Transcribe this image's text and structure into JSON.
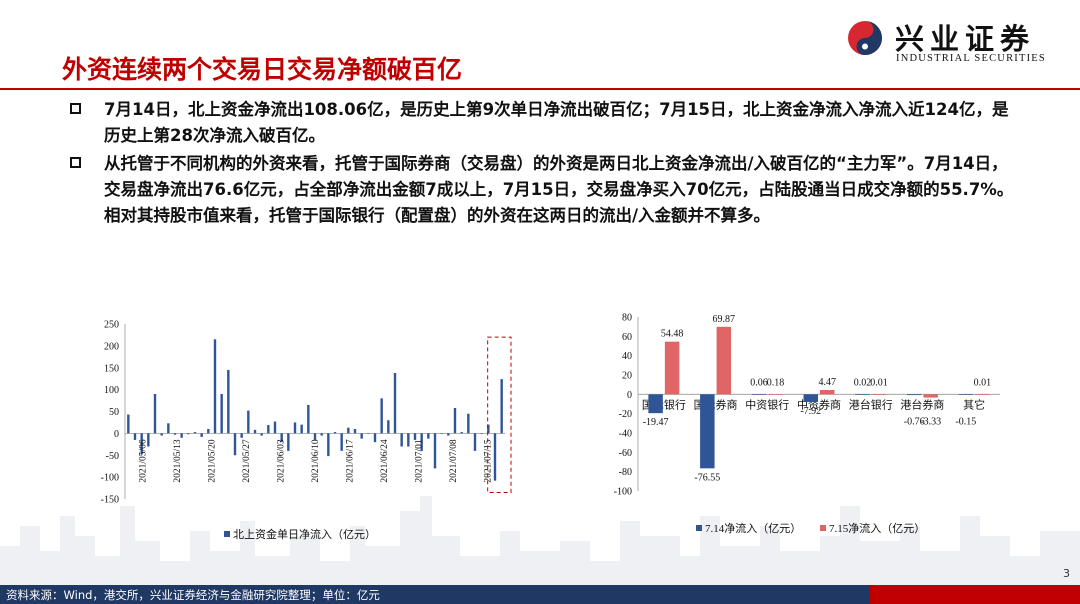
{
  "logo": {
    "cn": "兴业证券",
    "en": "INDUSTRIAL SECURITIES",
    "brand_red": "#d7282f",
    "brand_blue": "#1f3864"
  },
  "title": "外资连续两个交易日交易净额破百亿",
  "bullets": [
    "7月14日，北上资金净流出108.06亿，是历史上第9次单日净流出破百亿；7月15日，北上资金净流入净流入近124亿，是历史上第28次净流入破百亿。",
    "从托管于不同机构的外资来看，托管于国际券商（交易盘）的外资是两日北上资金净流出/入破百亿的“主力军”。7月14日，交易盘净流出76.6亿元，占全部净流出金额7成以上，7月15日，交易盘净买入70亿元，占陆股通当日成交净额的55.7%。相对其持股市值来看，托管于国际银行（配置盘）的外资在这两日的流出/入金额并不算多。"
  ],
  "footer": "资料来源：Wind，港交所，兴业证券经济与金融研究院整理；单位：亿元",
  "page_number": "3",
  "colors": {
    "accent": "#c00000",
    "blue_series": "#2f5597",
    "red_series": "#e06666"
  },
  "chart_data": [
    {
      "type": "bar",
      "title": "",
      "ylim": [
        -150,
        250
      ],
      "yticks": [
        "250",
        "200",
        "150",
        "100",
        "50",
        "0",
        "-50",
        "-100",
        "-150"
      ],
      "xtick_labels": [
        "2021/05/06",
        "2021/05/13",
        "2021/05/20",
        "2021/05/27",
        "2021/06/03",
        "2021/06/10",
        "2021/06/17",
        "2021/06/24",
        "2021/07/01",
        "2021/07/08",
        "2021/07/15"
      ],
      "series": [
        {
          "name": "北上资金单日净流入（亿元）",
          "color": "#2f5597",
          "values": [
            43,
            -15,
            -48,
            -30,
            90,
            -5,
            23,
            -3,
            -10,
            -2,
            3,
            -8,
            10,
            215,
            90,
            145,
            -50,
            -10,
            52,
            8,
            -5,
            19,
            27,
            -20,
            -40,
            25,
            20,
            65,
            -15,
            -5,
            -52,
            3,
            -40,
            13,
            10,
            -12,
            0,
            -20,
            80,
            30,
            138,
            -30,
            -30,
            -15,
            -40,
            -12,
            -80,
            0,
            -5,
            58,
            3,
            45,
            -40,
            0,
            20,
            -108.06,
            124
          ]
        }
      ],
      "highlight_last_n": 2
    },
    {
      "type": "bar",
      "title": "",
      "ylim": [
        -100,
        80
      ],
      "yticks": [
        "80",
        "60",
        "40",
        "20",
        "0",
        "-20",
        "-40",
        "-60",
        "-80",
        "-100"
      ],
      "categories": [
        "国际银行",
        "国际券商",
        "中资银行",
        "中资券商",
        "港台银行",
        "港台券商",
        "其它"
      ],
      "series": [
        {
          "name": "7.14净流入（亿元）",
          "color": "#2f5597",
          "values": [
            -19.47,
            -76.55,
            0.06,
            -7.92,
            0.02,
            -0.76,
            -0.15
          ]
        },
        {
          "name": "7.15净流入（亿元）",
          "color": "#e06666",
          "values": [
            54.48,
            69.87,
            0.18,
            4.47,
            0.01,
            -3.33,
            0.01
          ]
        }
      ],
      "data_labels": [
        [
          "-19.47",
          "-76.55",
          "0.06",
          "-7.92",
          "0.02",
          "-0.76",
          "-0.15"
        ],
        [
          "54.48",
          "69.87",
          "0.18",
          "4.47",
          "0.01",
          "-3.33",
          "0.01"
        ]
      ]
    }
  ]
}
